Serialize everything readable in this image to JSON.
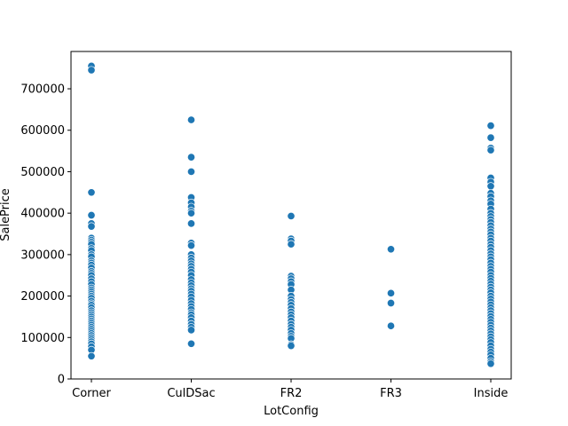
{
  "chart_data": {
    "type": "scatter",
    "xlabel": "LotConfig",
    "ylabel": "SalePrice",
    "categories": [
      "Corner",
      "CulDSac",
      "FR2",
      "FR3",
      "Inside"
    ],
    "ylim": [
      0,
      790000
    ],
    "yticks": [
      0,
      100000,
      200000,
      300000,
      400000,
      500000,
      600000,
      700000
    ],
    "ytick_labels": [
      "0",
      "100000",
      "200000",
      "300000",
      "400000",
      "500000",
      "600000",
      "700000"
    ],
    "grid": false,
    "legend": "none",
    "marker_color": "#1f77b4",
    "points": [
      {
        "category": "Corner",
        "values": [
          755000,
          745000,
          450000,
          395000,
          375000,
          368000,
          340000,
          335000,
          330000,
          325000,
          315000,
          310000,
          300000,
          295000,
          285000,
          280000,
          275000,
          268000,
          260000,
          255000,
          250000,
          242000,
          235000,
          228000,
          220000,
          215000,
          210000,
          205000,
          200000,
          195000,
          188000,
          182000,
          178000,
          172000,
          165000,
          160000,
          155000,
          150000,
          145000,
          140000,
          135000,
          130000,
          125000,
          120000,
          115000,
          110000,
          105000,
          100000,
          95000,
          90000,
          85000,
          78000,
          70000,
          55000
        ]
      },
      {
        "category": "CulDSac",
        "values": [
          625000,
          535000,
          500000,
          438000,
          425000,
          415000,
          405000,
          400000,
          375000,
          328000,
          322000,
          300000,
          292000,
          285000,
          278000,
          272000,
          265000,
          258000,
          250000,
          240000,
          232000,
          225000,
          218000,
          212000,
          205000,
          198000,
          190000,
          182000,
          175000,
          168000,
          160000,
          155000,
          148000,
          140000,
          132000,
          125000,
          118000,
          85000
        ]
      },
      {
        "category": "FR2",
        "values": [
          393000,
          338000,
          333000,
          325000,
          248000,
          242000,
          235000,
          228000,
          215000,
          200000,
          192000,
          185000,
          178000,
          170000,
          162000,
          155000,
          148000,
          140000,
          132000,
          125000,
          118000,
          110000,
          103000,
          98000,
          83000,
          80000
        ]
      },
      {
        "category": "FR3",
        "values": [
          313000,
          207000,
          183000,
          128000
        ]
      },
      {
        "category": "Inside",
        "values": [
          611000,
          582000,
          557000,
          552000,
          485000,
          475000,
          465000,
          448000,
          440000,
          430000,
          422000,
          410000,
          400000,
          392000,
          385000,
          378000,
          370000,
          362000,
          355000,
          348000,
          340000,
          333000,
          325000,
          318000,
          310000,
          302000,
          295000,
          288000,
          280000,
          272000,
          265000,
          258000,
          250000,
          243000,
          236000,
          229000,
          222000,
          215000,
          208000,
          200000,
          193000,
          186000,
          179000,
          172000,
          165000,
          158000,
          151000,
          144000,
          137000,
          130000,
          123000,
          116000,
          109000,
          102000,
          95000,
          88000,
          80000,
          72000,
          65000,
          58000,
          50000,
          42000,
          37000
        ]
      }
    ]
  }
}
